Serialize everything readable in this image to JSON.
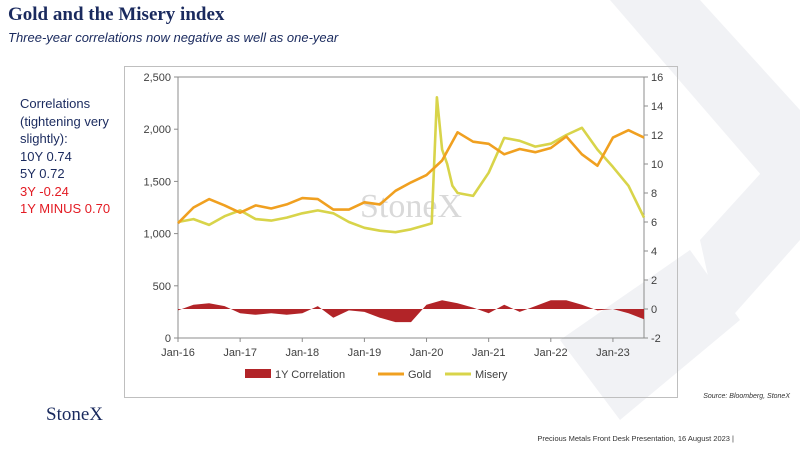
{
  "header": {
    "title": "Gold and the Misery index",
    "subtitle": "Three-year correlations now negative as well as one-year"
  },
  "correlations": {
    "heading": "Correlations (tightening very slightly):",
    "lines": [
      {
        "text": "10Y 0.74",
        "negative": false
      },
      {
        "text": "5Y 0.72",
        "negative": false
      },
      {
        "text": "3Y -0.24",
        "negative": true
      },
      {
        "text": "1Y MINUS 0.70",
        "negative": true
      }
    ]
  },
  "chart_data": {
    "type": "line",
    "watermark": "StoneX",
    "x_tick_labels": [
      "Jan-16",
      "Jan-17",
      "Jan-18",
      "Jan-19",
      "Jan-20",
      "Jan-21",
      "Jan-22",
      "Jan-23"
    ],
    "x_range": [
      "2016-01",
      "2023-07"
    ],
    "left_axis": {
      "ticks": [
        "0",
        "500",
        "1,000",
        "1,500",
        "2,000",
        "2,500"
      ],
      "ylim": [
        0,
        2500
      ]
    },
    "right_axis": {
      "ticks": [
        "-2",
        "0",
        "2",
        "4",
        "6",
        "8",
        "10",
        "12",
        "14",
        "16"
      ],
      "ylim": [
        -2,
        16
      ]
    },
    "legend": {
      "placement": "bottom",
      "entries": [
        "1Y Correlation",
        "Gold",
        "Misery"
      ]
    },
    "colors": {
      "correlation": "#b22428",
      "gold": "#f0a020",
      "misery": "#d8d44a"
    },
    "series": [
      {
        "name": "1Y Correlation",
        "axis": "right",
        "style": "area",
        "x": [
          "2016-01",
          "2016-04",
          "2016-07",
          "2016-10",
          "2017-01",
          "2017-04",
          "2017-07",
          "2017-10",
          "2018-01",
          "2018-04",
          "2018-07",
          "2018-10",
          "2019-01",
          "2019-04",
          "2019-07",
          "2019-10",
          "2020-01",
          "2020-04",
          "2020-07",
          "2020-10",
          "2021-01",
          "2021-04",
          "2021-07",
          "2021-10",
          "2022-01",
          "2022-04",
          "2022-07",
          "2022-10",
          "2023-01",
          "2023-04",
          "2023-07"
        ],
        "values": [
          -0.1,
          0.3,
          0.4,
          0.2,
          -0.3,
          -0.4,
          -0.3,
          -0.4,
          -0.3,
          0.2,
          -0.6,
          -0.1,
          -0.2,
          -0.6,
          -0.9,
          -0.9,
          0.3,
          0.6,
          0.4,
          0.1,
          -0.3,
          0.3,
          -0.2,
          0.2,
          0.6,
          0.6,
          0.3,
          -0.1,
          0.0,
          -0.3,
          -0.7
        ]
      },
      {
        "name": "Gold",
        "axis": "left",
        "x": [
          "2016-01",
          "2016-04",
          "2016-07",
          "2016-10",
          "2017-01",
          "2017-04",
          "2017-07",
          "2017-10",
          "2018-01",
          "2018-04",
          "2018-07",
          "2018-10",
          "2019-01",
          "2019-04",
          "2019-07",
          "2019-10",
          "2020-01",
          "2020-04",
          "2020-07",
          "2020-10",
          "2021-01",
          "2021-04",
          "2021-07",
          "2021-10",
          "2022-01",
          "2022-04",
          "2022-07",
          "2022-10",
          "2023-01",
          "2023-04",
          "2023-07"
        ],
        "values": [
          1100,
          1250,
          1330,
          1270,
          1200,
          1270,
          1240,
          1280,
          1340,
          1330,
          1230,
          1230,
          1300,
          1280,
          1410,
          1490,
          1560,
          1700,
          1970,
          1880,
          1860,
          1760,
          1810,
          1780,
          1820,
          1930,
          1760,
          1650,
          1920,
          1990,
          1920
        ]
      },
      {
        "name": "Misery",
        "axis": "right",
        "x": [
          "2016-01",
          "2016-04",
          "2016-07",
          "2016-10",
          "2017-01",
          "2017-04",
          "2017-07",
          "2017-10",
          "2018-01",
          "2018-04",
          "2018-07",
          "2018-10",
          "2019-01",
          "2019-04",
          "2019-07",
          "2019-10",
          "2020-01",
          "2020-02",
          "2020-03",
          "2020-04",
          "2020-05",
          "2020-06",
          "2020-07",
          "2020-10",
          "2021-01",
          "2021-04",
          "2021-07",
          "2021-10",
          "2022-01",
          "2022-04",
          "2022-07",
          "2022-10",
          "2023-01",
          "2023-04",
          "2023-07"
        ],
        "values": [
          6.0,
          6.2,
          5.8,
          6.4,
          6.8,
          6.2,
          6.1,
          6.3,
          6.6,
          6.8,
          6.6,
          6.0,
          5.6,
          5.4,
          5.3,
          5.5,
          5.8,
          5.9,
          14.6,
          11.0,
          10.0,
          8.5,
          8.0,
          7.8,
          9.4,
          11.8,
          11.6,
          11.2,
          11.4,
          12.0,
          12.5,
          11.0,
          9.8,
          8.5,
          6.3
        ]
      }
    ]
  },
  "source": "Source: Bloomberg, StoneX",
  "footer": {
    "logo": "StoneX",
    "presentation": "Precious Metals Front Desk Presentation, 16 August 2023 |"
  }
}
